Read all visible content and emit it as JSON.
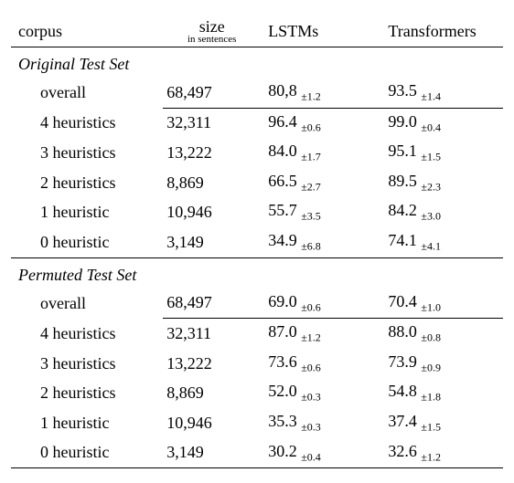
{
  "headers": {
    "corpus": "corpus",
    "size": "size",
    "size_sub": "in sentences",
    "m1": "LSTMs",
    "m2": "Transformers"
  },
  "sections": [
    {
      "title": "Original Test Set",
      "rows": [
        {
          "name": "overall",
          "size": "68,497",
          "m1": "80,8",
          "e1": "±1.2",
          "m2": "93.5",
          "e2": "±1.4"
        },
        {
          "name": "4 heuristics",
          "size": "32,311",
          "m1": "96.4",
          "e1": "±0.6",
          "m2": "99.0",
          "e2": "±0.4"
        },
        {
          "name": "3 heuristics",
          "size": "13,222",
          "m1": "84.0",
          "e1": "±1.7",
          "m2": "95.1",
          "e2": "±1.5"
        },
        {
          "name": "2 heuristics",
          "size": "8,869",
          "m1": "66.5",
          "e1": "±2.7",
          "m2": "89.5",
          "e2": "±2.3"
        },
        {
          "name": "1 heuristic",
          "size": "10,946",
          "m1": "55.7",
          "e1": "±3.5",
          "m2": "84.2",
          "e2": "±3.0"
        },
        {
          "name": "0 heuristic",
          "size": "3,149",
          "m1": "34.9",
          "e1": "±6.8",
          "m2": "74.1",
          "e2": "±4.1"
        }
      ]
    },
    {
      "title": "Permuted Test Set",
      "rows": [
        {
          "name": "overall",
          "size": "68,497",
          "m1": "69.0",
          "e1": "±0.6",
          "m2": "70.4",
          "e2": "±1.0"
        },
        {
          "name": "4 heuristics",
          "size": "32,311",
          "m1": "87.0",
          "e1": "±1.2",
          "m2": "88.0",
          "e2": "±0.8"
        },
        {
          "name": "3 heuristics",
          "size": "13,222",
          "m1": "73.6",
          "e1": "±0.6",
          "m2": "73.9",
          "e2": "±0.9"
        },
        {
          "name": "2 heuristics",
          "size": "8,869",
          "m1": "52.0",
          "e1": "±0.3",
          "m2": "54.8",
          "e2": "±1.8"
        },
        {
          "name": "1 heuristic",
          "size": "10,946",
          "m1": "35.3",
          "e1": "±0.3",
          "m2": "37.4",
          "e2": "±1.5"
        },
        {
          "name": "0 heuristic",
          "size": "3,149",
          "m1": "30.2",
          "e1": "±0.4",
          "m2": "32.6",
          "e2": "±1.2"
        }
      ]
    }
  ],
  "style": {
    "font": "Times New Roman",
    "fontsize": 18,
    "sub_fontsize": 12,
    "bg": "#ffffff",
    "rule_color": "#000000"
  }
}
